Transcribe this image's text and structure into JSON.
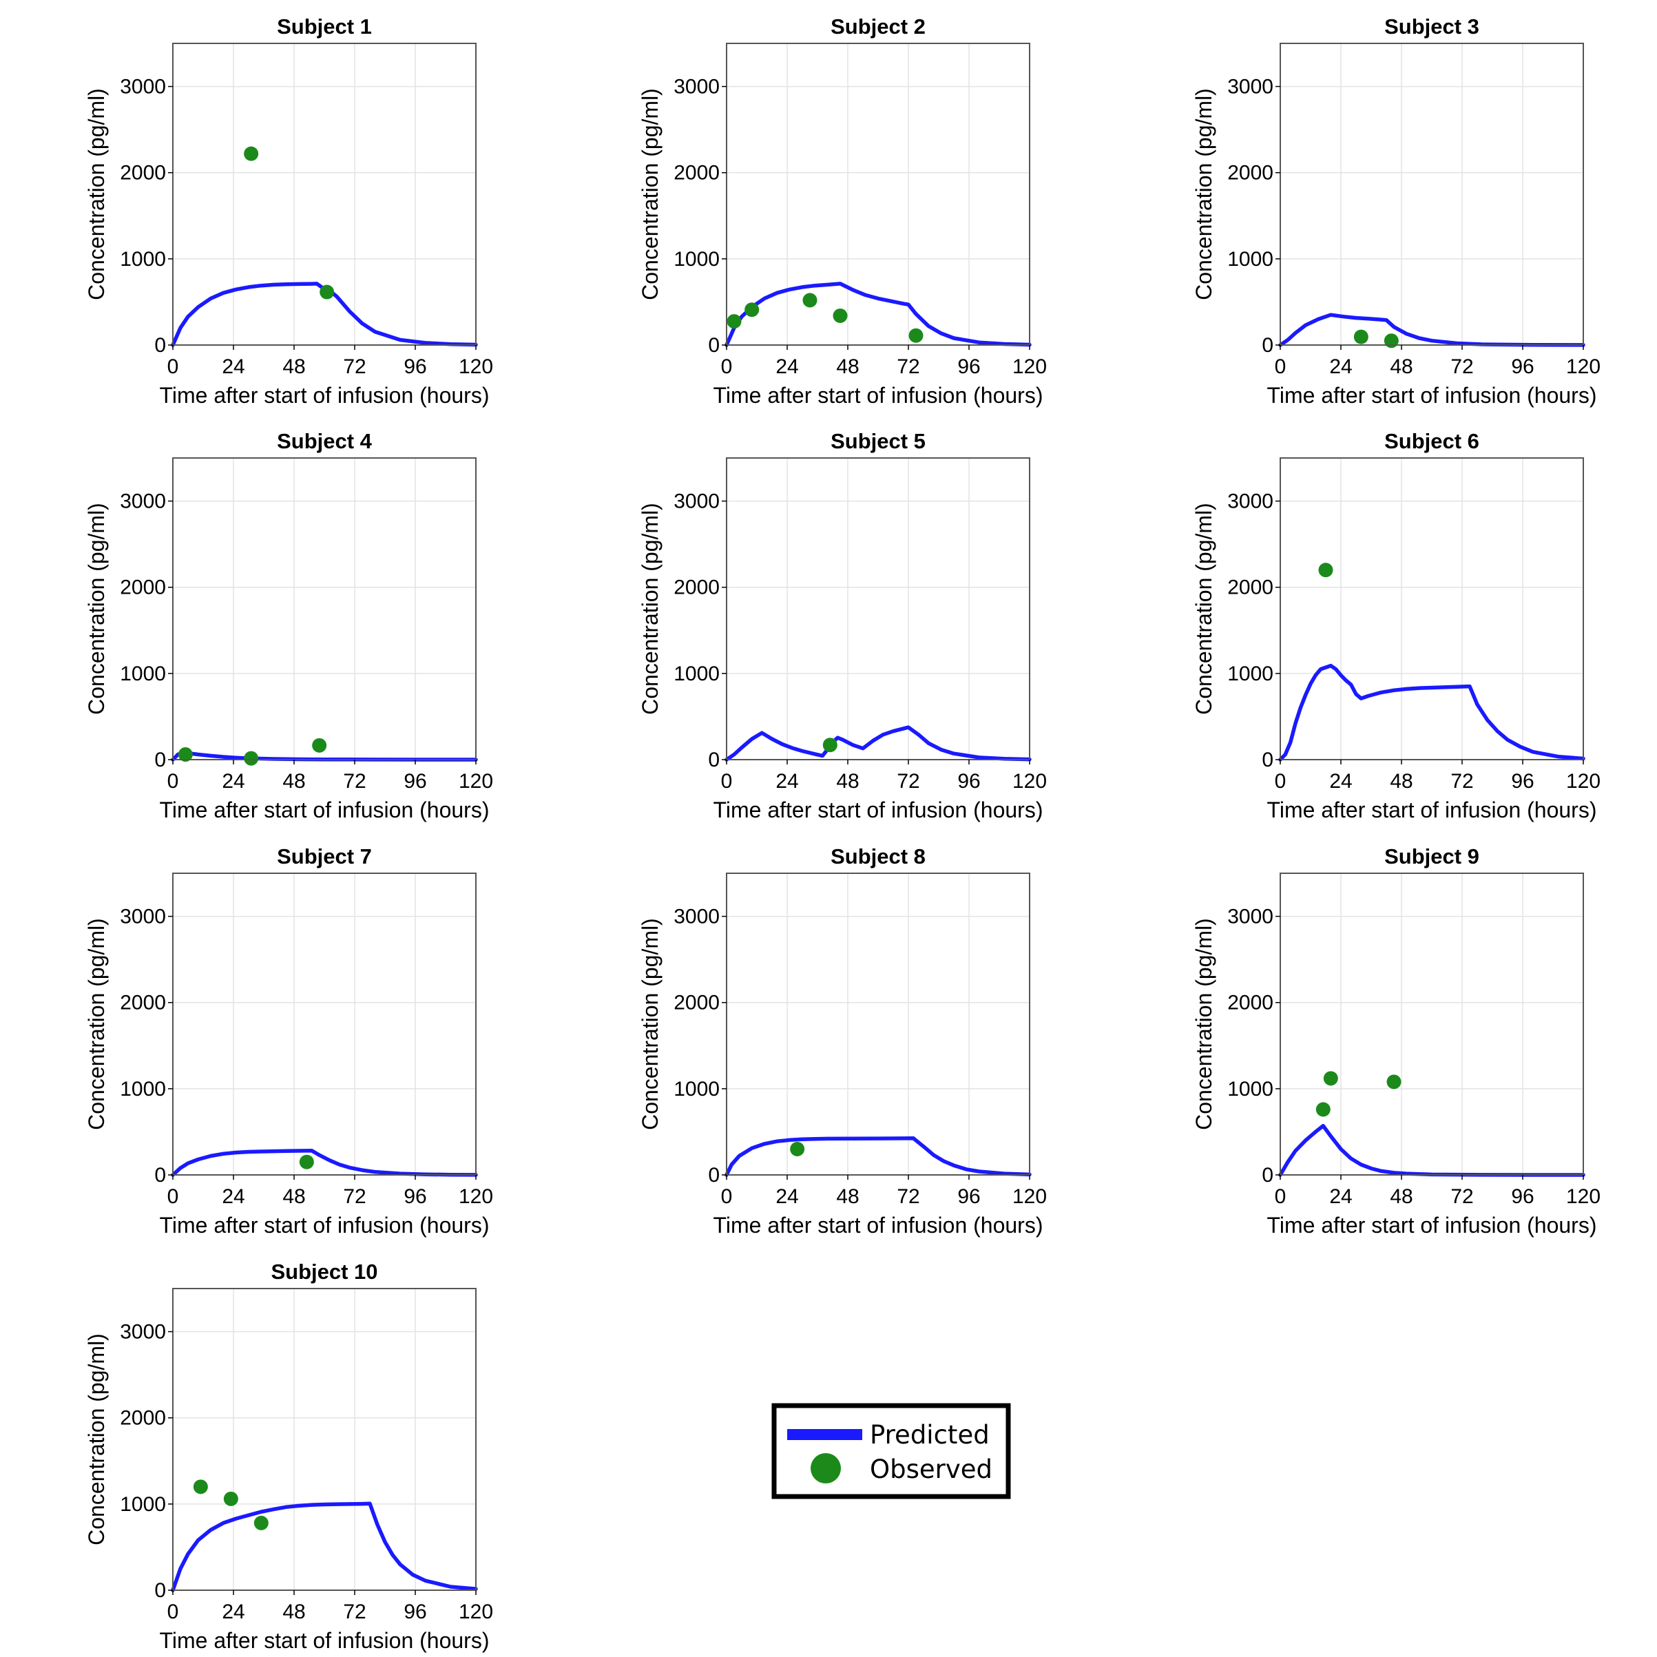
{
  "colors": {
    "predicted": "#1a1aff",
    "observed": "#1b8a1b",
    "grid": "#e3e3e3",
    "frame": "#555555"
  },
  "legend": {
    "placement": "bottom-center",
    "predicted_label": "Predicted",
    "observed_label": "Observed"
  },
  "chart_data": [
    {
      "type": "line",
      "title": "Subject 1",
      "xlabel": "Time after start of infusion (hours)",
      "ylabel": "Concentration (pg/ml)",
      "xlim": [
        0,
        120
      ],
      "ylim": [
        0,
        3500
      ],
      "xticks": [
        0,
        24,
        48,
        72,
        96,
        120
      ],
      "yticks": [
        0,
        1000,
        2000,
        3000
      ],
      "grid": true,
      "series": [
        {
          "name": "Predicted",
          "kind": "line",
          "x": [
            0,
            3,
            6,
            10,
            15,
            20,
            25,
            30,
            35,
            40,
            45,
            50,
            55,
            57,
            60,
            63,
            65,
            70,
            75,
            80,
            90,
            100,
            110,
            120
          ],
          "y": [
            0,
            200,
            330,
            440,
            540,
            605,
            645,
            672,
            690,
            700,
            705,
            708,
            710,
            712,
            650,
            610,
            560,
            390,
            250,
            155,
            60,
            25,
            10,
            4
          ]
        },
        {
          "name": "Observed",
          "kind": "scatter",
          "x": [
            31,
            61
          ],
          "y": [
            2220,
            615
          ]
        }
      ]
    },
    {
      "type": "line",
      "title": "Subject 2",
      "xlabel": "Time after start of infusion (hours)",
      "ylabel": "Concentration (pg/ml)",
      "xlim": [
        0,
        120
      ],
      "ylim": [
        0,
        3500
      ],
      "xticks": [
        0,
        24,
        48,
        72,
        96,
        120
      ],
      "yticks": [
        0,
        1000,
        2000,
        3000
      ],
      "grid": true,
      "series": [
        {
          "name": "Predicted",
          "kind": "line",
          "x": [
            0,
            3,
            6,
            10,
            15,
            20,
            25,
            30,
            35,
            40,
            45,
            50,
            55,
            60,
            65,
            70,
            72,
            75,
            80,
            85,
            90,
            100,
            110,
            120
          ],
          "y": [
            0,
            200,
            330,
            440,
            540,
            605,
            645,
            672,
            690,
            700,
            712,
            640,
            580,
            540,
            510,
            480,
            470,
            360,
            220,
            135,
            80,
            30,
            12,
            4
          ]
        },
        {
          "name": "Observed",
          "kind": "scatter",
          "x": [
            3,
            10,
            33,
            45,
            75
          ],
          "y": [
            275,
            410,
            520,
            340,
            110
          ]
        }
      ]
    },
    {
      "type": "line",
      "title": "Subject 3",
      "xlabel": "Time after start of infusion (hours)",
      "ylabel": "Concentration (pg/ml)",
      "xlim": [
        0,
        120
      ],
      "ylim": [
        0,
        3500
      ],
      "xticks": [
        0,
        24,
        48,
        72,
        96,
        120
      ],
      "yticks": [
        0,
        1000,
        2000,
        3000
      ],
      "grid": true,
      "series": [
        {
          "name": "Predicted",
          "kind": "line",
          "x": [
            0,
            3,
            6,
            10,
            15,
            20,
            25,
            30,
            35,
            40,
            42,
            45,
            50,
            55,
            60,
            70,
            80,
            100,
            120
          ],
          "y": [
            0,
            60,
            140,
            230,
            300,
            350,
            330,
            315,
            305,
            295,
            290,
            210,
            130,
            80,
            50,
            20,
            8,
            2,
            1
          ]
        },
        {
          "name": "Observed",
          "kind": "scatter",
          "x": [
            32,
            44
          ],
          "y": [
            95,
            50
          ]
        }
      ]
    },
    {
      "type": "line",
      "title": "Subject 4",
      "xlabel": "Time after start of infusion (hours)",
      "ylabel": "Concentration (pg/ml)",
      "xlim": [
        0,
        120
      ],
      "ylim": [
        0,
        3500
      ],
      "xticks": [
        0,
        24,
        48,
        72,
        96,
        120
      ],
      "yticks": [
        0,
        1000,
        2000,
        3000
      ],
      "grid": true,
      "series": [
        {
          "name": "Predicted",
          "kind": "line",
          "x": [
            0,
            2,
            4,
            6,
            10,
            15,
            20,
            25,
            30,
            40,
            50,
            60,
            80,
            100,
            120
          ],
          "y": [
            0,
            60,
            80,
            75,
            60,
            45,
            32,
            22,
            15,
            8,
            4,
            2,
            1,
            0,
            0
          ]
        },
        {
          "name": "Observed",
          "kind": "scatter",
          "x": [
            5,
            31,
            58
          ],
          "y": [
            60,
            15,
            165
          ]
        }
      ]
    },
    {
      "type": "line",
      "title": "Subject 5",
      "xlabel": "Time after start of infusion (hours)",
      "ylabel": "Concentration (pg/ml)",
      "xlim": [
        0,
        120
      ],
      "ylim": [
        0,
        3500
      ],
      "xticks": [
        0,
        24,
        48,
        72,
        96,
        120
      ],
      "yticks": [
        0,
        1000,
        2000,
        3000
      ],
      "grid": true,
      "series": [
        {
          "name": "Predicted",
          "kind": "line",
          "x": [
            0,
            3,
            6,
            10,
            14,
            18,
            22,
            26,
            30,
            35,
            38,
            40,
            42,
            44,
            46,
            50,
            54,
            58,
            62,
            66,
            70,
            72,
            76,
            80,
            85,
            90,
            100,
            110,
            120
          ],
          "y": [
            0,
            60,
            140,
            240,
            310,
            240,
            180,
            135,
            100,
            65,
            45,
            120,
            200,
            255,
            230,
            170,
            130,
            220,
            290,
            330,
            360,
            375,
            290,
            190,
            115,
            70,
            25,
            10,
            3
          ]
        },
        {
          "name": "Observed",
          "kind": "scatter",
          "x": [
            41
          ],
          "y": [
            170
          ]
        }
      ]
    },
    {
      "type": "line",
      "title": "Subject 6",
      "xlabel": "Time after start of infusion (hours)",
      "ylabel": "Concentration (pg/ml)",
      "xlim": [
        0,
        120
      ],
      "ylim": [
        0,
        3500
      ],
      "xticks": [
        0,
        24,
        48,
        72,
        96,
        120
      ],
      "yticks": [
        0,
        1000,
        2000,
        3000
      ],
      "grid": true,
      "series": [
        {
          "name": "Predicted",
          "kind": "line",
          "x": [
            0,
            2,
            4,
            6,
            8,
            10,
            12,
            14,
            16,
            18,
            20,
            22,
            24,
            26,
            28,
            30,
            32,
            35,
            40,
            45,
            50,
            55,
            60,
            65,
            70,
            75,
            78,
            82,
            86,
            90,
            95,
            100,
            110,
            120
          ],
          "y": [
            0,
            60,
            200,
            420,
            600,
            750,
            880,
            980,
            1050,
            1070,
            1090,
            1050,
            980,
            920,
            870,
            760,
            710,
            740,
            780,
            805,
            820,
            830,
            835,
            840,
            845,
            850,
            640,
            460,
            330,
            230,
            150,
            90,
            35,
            12
          ]
        },
        {
          "name": "Observed",
          "kind": "scatter",
          "x": [
            18
          ],
          "y": [
            2200
          ]
        }
      ]
    },
    {
      "type": "line",
      "title": "Subject 7",
      "xlabel": "Time after start of infusion (hours)",
      "ylabel": "Concentration (pg/ml)",
      "xlim": [
        0,
        120
      ],
      "ylim": [
        0,
        3500
      ],
      "xticks": [
        0,
        24,
        48,
        72,
        96,
        120
      ],
      "yticks": [
        0,
        1000,
        2000,
        3000
      ],
      "grid": true,
      "series": [
        {
          "name": "Predicted",
          "kind": "line",
          "x": [
            0,
            3,
            6,
            10,
            15,
            20,
            25,
            30,
            35,
            40,
            45,
            50,
            55,
            58,
            62,
            66,
            70,
            75,
            80,
            90,
            100,
            110,
            120
          ],
          "y": [
            0,
            80,
            135,
            180,
            220,
            245,
            260,
            268,
            272,
            275,
            278,
            280,
            282,
            230,
            170,
            120,
            85,
            55,
            35,
            15,
            6,
            2,
            1
          ]
        },
        {
          "name": "Observed",
          "kind": "scatter",
          "x": [
            53
          ],
          "y": [
            150
          ]
        }
      ]
    },
    {
      "type": "line",
      "title": "Subject 8",
      "xlabel": "Time after start of infusion (hours)",
      "ylabel": "Concentration (pg/ml)",
      "xlim": [
        0,
        120
      ],
      "ylim": [
        0,
        3500
      ],
      "xticks": [
        0,
        24,
        48,
        72,
        96,
        120
      ],
      "yticks": [
        0,
        1000,
        2000,
        3000
      ],
      "grid": true,
      "series": [
        {
          "name": "Predicted",
          "kind": "line",
          "x": [
            0,
            2,
            5,
            10,
            15,
            20,
            25,
            30,
            35,
            40,
            50,
            60,
            70,
            74,
            78,
            82,
            86,
            90,
            95,
            100,
            110,
            120
          ],
          "y": [
            0,
            120,
            220,
            310,
            360,
            390,
            405,
            413,
            418,
            420,
            422,
            423,
            424,
            425,
            330,
            230,
            160,
            110,
            65,
            40,
            15,
            5
          ]
        },
        {
          "name": "Observed",
          "kind": "scatter",
          "x": [
            28
          ],
          "y": [
            300
          ]
        }
      ]
    },
    {
      "type": "line",
      "title": "Subject 9",
      "xlabel": "Time after start of infusion (hours)",
      "ylabel": "Concentration (pg/ml)",
      "xlim": [
        0,
        120
      ],
      "ylim": [
        0,
        3500
      ],
      "xticks": [
        0,
        24,
        48,
        72,
        96,
        120
      ],
      "yticks": [
        0,
        1000,
        2000,
        3000
      ],
      "grid": true,
      "series": [
        {
          "name": "Predicted",
          "kind": "line",
          "x": [
            0,
            3,
            6,
            10,
            14,
            17,
            20,
            24,
            28,
            32,
            36,
            40,
            45,
            50,
            60,
            80,
            100,
            120
          ],
          "y": [
            0,
            150,
            280,
            400,
            500,
            570,
            450,
            300,
            190,
            120,
            75,
            45,
            25,
            15,
            5,
            1,
            0,
            0
          ]
        },
        {
          "name": "Observed",
          "kind": "scatter",
          "x": [
            17,
            20,
            45
          ],
          "y": [
            760,
            1120,
            1080
          ]
        }
      ]
    },
    {
      "type": "line",
      "title": "Subject 10",
      "xlabel": "Time after start of infusion (hours)",
      "ylabel": "Concentration (pg/ml)",
      "xlim": [
        0,
        120
      ],
      "ylim": [
        0,
        3500
      ],
      "xticks": [
        0,
        24,
        48,
        72,
        96,
        120
      ],
      "yticks": [
        0,
        1000,
        2000,
        3000
      ],
      "grid": true,
      "series": [
        {
          "name": "Predicted",
          "kind": "line",
          "x": [
            0,
            3,
            6,
            10,
            15,
            20,
            25,
            30,
            35,
            40,
            45,
            50,
            55,
            60,
            65,
            70,
            75,
            78,
            81,
            84,
            87,
            90,
            95,
            100,
            110,
            120
          ],
          "y": [
            0,
            250,
            420,
            580,
            700,
            780,
            830,
            870,
            910,
            940,
            965,
            980,
            990,
            995,
            998,
            1000,
            1002,
            1005,
            760,
            560,
            410,
            300,
            180,
            110,
            40,
            15
          ]
        },
        {
          "name": "Observed",
          "kind": "scatter",
          "x": [
            11,
            23,
            35
          ],
          "y": [
            1200,
            1060,
            780
          ]
        }
      ]
    }
  ]
}
